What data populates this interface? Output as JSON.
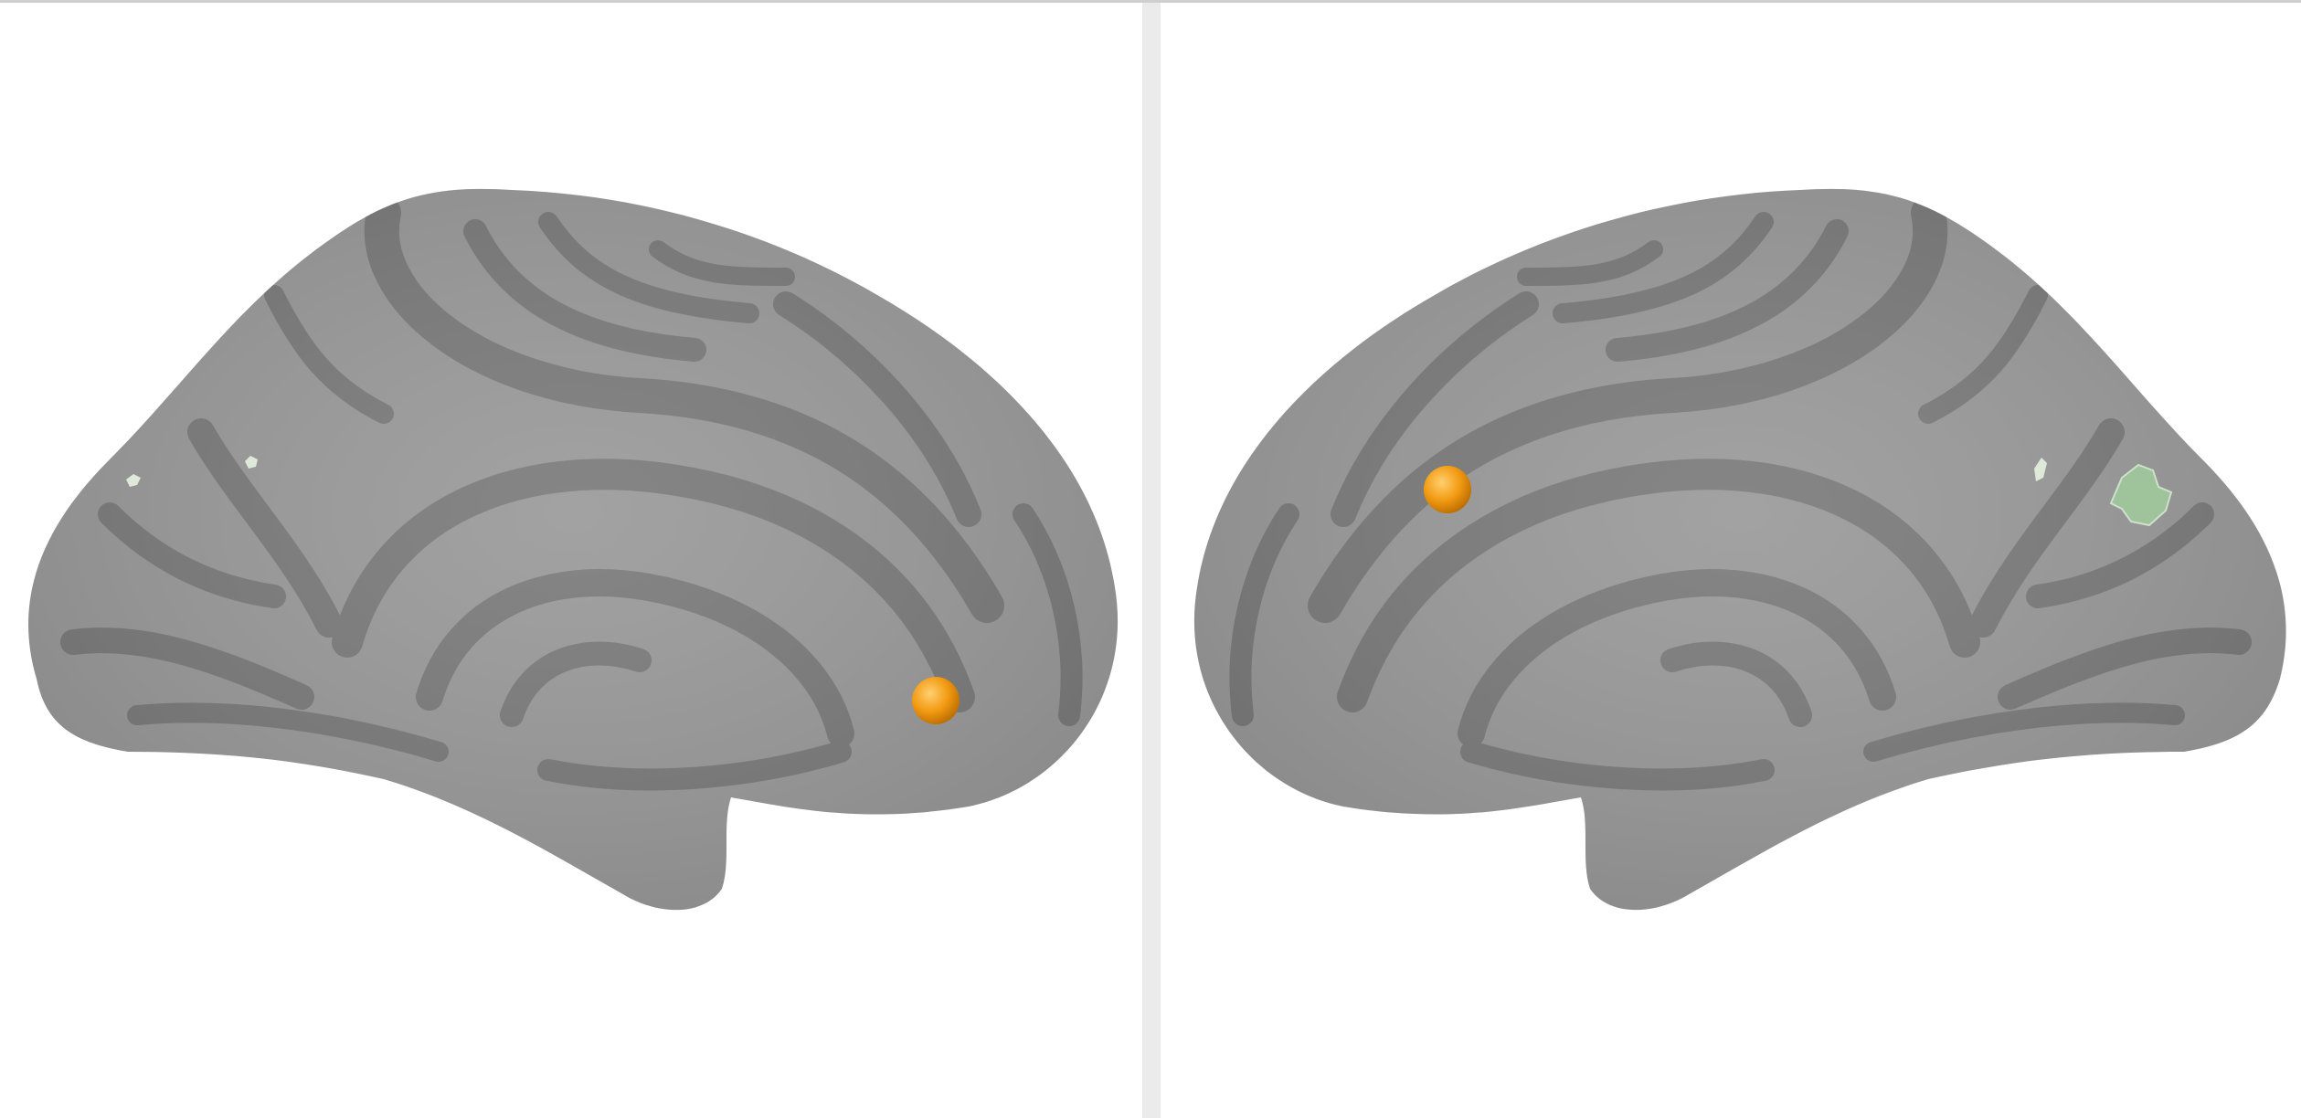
{
  "views": [
    {
      "id": "left",
      "hemisphere_view": "medial",
      "surface": "inflated",
      "colors": {
        "background": "#ffffff",
        "gyri": "#9a9a9a",
        "sulci": "#7b7b7b",
        "marker": "#f29a12"
      },
      "markers": [
        {
          "shape": "sphere",
          "color": "#f29a12"
        }
      ],
      "overlay_patches": [
        {
          "color": "#dfe9d9"
        },
        {
          "color": "#dfe9d9"
        }
      ]
    },
    {
      "id": "right",
      "hemisphere_view": "medial",
      "surface": "inflated",
      "colors": {
        "background": "#ffffff",
        "gyri": "#9a9a9a",
        "sulci": "#7b7b7b",
        "marker": "#f29a12"
      },
      "markers": [
        {
          "shape": "sphere",
          "color": "#f29a12"
        }
      ],
      "overlay_patches": [
        {
          "color": "#9fc39b"
        },
        {
          "color": "#dfe9d9"
        }
      ]
    }
  ],
  "divider_color": "#ebebeb"
}
